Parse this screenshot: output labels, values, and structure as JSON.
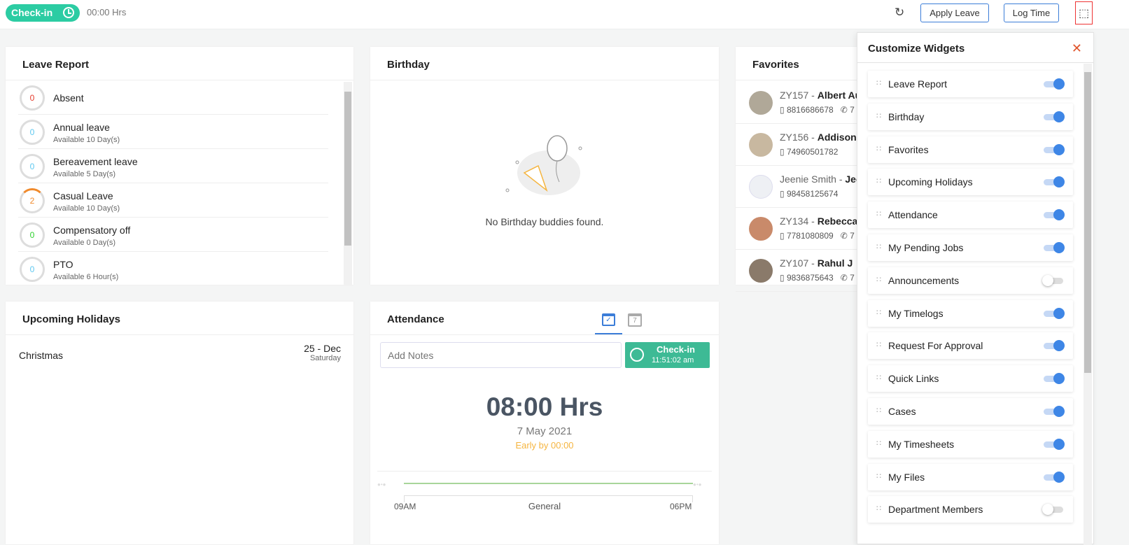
{
  "topbar": {
    "checkin_label": "Check-in",
    "hours": "00:00 Hrs",
    "apply_leave": "Apply Leave",
    "log_time": "Log Time"
  },
  "leave_report": {
    "title": "Leave Report",
    "items": [
      {
        "count": "0",
        "name": "Absent",
        "available": "",
        "color": "#e53b2c"
      },
      {
        "count": "0",
        "name": "Annual leave",
        "available": "Available 10 Day(s)",
        "color": "#5ec8f0"
      },
      {
        "count": "0",
        "name": "Bereavement leave",
        "available": "Available 5 Day(s)",
        "color": "#5ec8f0"
      },
      {
        "count": "2",
        "name": "Casual Leave",
        "available": "Available 10 Day(s)",
        "color": "#f08a2c"
      },
      {
        "count": "0",
        "name": "Compensatory off",
        "available": "Available 0 Day(s)",
        "color": "#2ed12e"
      },
      {
        "count": "0",
        "name": "PTO",
        "available": "Available 6 Hour(s)",
        "color": "#5ec8f0"
      }
    ]
  },
  "birthday": {
    "title": "Birthday",
    "empty": "No Birthday buddies found."
  },
  "favorites": {
    "title": "Favorites",
    "items": [
      {
        "id": "ZY157 - ",
        "name": "Albert Au",
        "mobile": "8816686678",
        "phone": "7"
      },
      {
        "id": "ZY156 - ",
        "name": "Addison B",
        "mobile": "74960501782",
        "phone": ""
      },
      {
        "id": "Jeenie Smith - ",
        "name": "Jeen",
        "mobile": "98458125674",
        "phone": ""
      },
      {
        "id": "ZY134 - ",
        "name": "Rebecca B",
        "mobile": "7781080809",
        "phone": "7"
      },
      {
        "id": "ZY107 - ",
        "name": "Rahul J",
        "mobile": "9836875643",
        "phone": "7"
      }
    ]
  },
  "holidays": {
    "title": "Upcoming Holidays",
    "items": [
      {
        "name": "Christmas",
        "date": "25 - Dec",
        "day": "Saturday"
      }
    ]
  },
  "attendance": {
    "title": "Attendance",
    "notes_placeholder": "Add Notes",
    "checkin_label": "Check-in",
    "checkin_time": "11:51:02 am",
    "hours": "08:00 Hrs",
    "date": "7 May 2021",
    "status": "Early by 00:00",
    "shift": "General",
    "start": "09AM",
    "end": "06PM",
    "calendar_day": "7"
  },
  "customize": {
    "title": "Customize Widgets",
    "widgets": [
      {
        "label": "Leave Report",
        "enabled": true
      },
      {
        "label": "Birthday",
        "enabled": true
      },
      {
        "label": "Favorites",
        "enabled": true
      },
      {
        "label": "Upcoming Holidays",
        "enabled": true
      },
      {
        "label": "Attendance",
        "enabled": true
      },
      {
        "label": "My Pending Jobs",
        "enabled": true
      },
      {
        "label": "Announcements",
        "enabled": false
      },
      {
        "label": "My Timelogs",
        "enabled": true
      },
      {
        "label": "Request For Approval",
        "enabled": true
      },
      {
        "label": "Quick Links",
        "enabled": true
      },
      {
        "label": "Cases",
        "enabled": true
      },
      {
        "label": "My Timesheets",
        "enabled": true
      },
      {
        "label": "My Files",
        "enabled": true
      },
      {
        "label": "Department Members",
        "enabled": false
      }
    ]
  }
}
